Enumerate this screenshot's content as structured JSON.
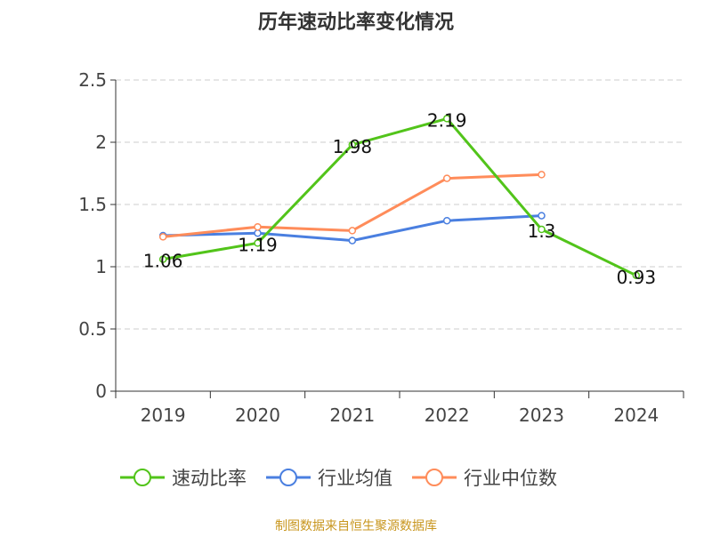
{
  "chart_data": {
    "type": "line",
    "title": "历年速动比率变化情况",
    "categories": [
      "2019",
      "2020",
      "2021",
      "2022",
      "2023",
      "2024"
    ],
    "ylim": [
      0,
      2.5
    ],
    "yticks": [
      "0",
      "0.5",
      "1",
      "1.5",
      "2",
      "2.5"
    ],
    "grid": true,
    "legend_position": "bottom",
    "series": [
      {
        "name": "速动比率",
        "color": "#52c41a",
        "values": [
          1.06,
          1.19,
          1.98,
          2.19,
          1.3,
          0.93
        ],
        "labels": [
          "1.06",
          "1.19",
          "1.98",
          "2.19",
          "1.3",
          "0.93"
        ]
      },
      {
        "name": "行业均值",
        "color": "#4a7fe0",
        "values": [
          1.25,
          1.27,
          1.21,
          1.37,
          1.41,
          null
        ]
      },
      {
        "name": "行业中位数",
        "color": "#ff8c5a",
        "values": [
          1.24,
          1.32,
          1.29,
          1.71,
          1.74,
          null
        ]
      }
    ],
    "source": "制图数据来自恒生聚源数据库"
  }
}
